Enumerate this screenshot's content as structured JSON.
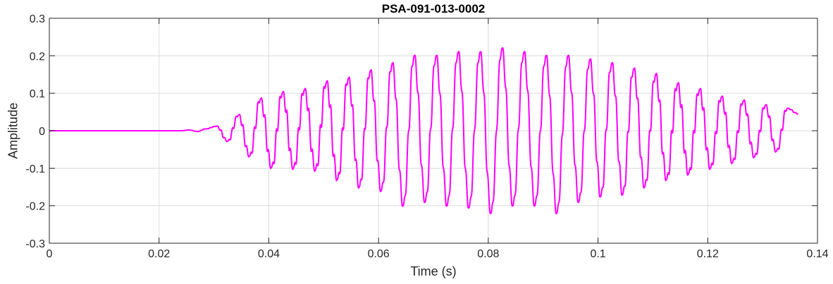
{
  "chart_data": {
    "type": "line",
    "title": "PSA-091-013-0002",
    "xlabel": "Time (s)",
    "ylabel": "Amplitude",
    "xlim": [
      0,
      0.14
    ],
    "ylim": [
      -0.3,
      0.3
    ],
    "xticks": [
      0,
      0.02,
      0.04,
      0.06,
      0.08,
      0.1,
      0.12,
      0.14
    ],
    "xtick_labels": [
      "0",
      "0.02",
      "0.04",
      "0.06",
      "0.08",
      "0.1",
      "0.12",
      "0.14"
    ],
    "yticks": [
      -0.3,
      -0.2,
      -0.1,
      0,
      0.1,
      0.2,
      0.3
    ],
    "ytick_labels": [
      "-0.3",
      "-0.2",
      "-0.1",
      "0",
      "0.1",
      "0.2",
      "0.3"
    ],
    "grid": true,
    "series": [
      {
        "color": "#ff00ff",
        "x": [
          0,
          0.024,
          0.0255,
          0.027,
          0.0285,
          0.0305,
          0.0325,
          0.0345,
          0.0365,
          0.0385,
          0.0405,
          0.0425,
          0.0445,
          0.0465,
          0.0485,
          0.0505,
          0.0525,
          0.0545,
          0.0565,
          0.0585,
          0.0605,
          0.0625,
          0.0645,
          0.0665,
          0.0685,
          0.0705,
          0.0725,
          0.0745,
          0.0765,
          0.0785,
          0.0805,
          0.0825,
          0.0845,
          0.0865,
          0.0885,
          0.0905,
          0.0925,
          0.0945,
          0.0965,
          0.0985,
          0.1005,
          0.1025,
          0.1045,
          0.1065,
          0.1085,
          0.1105,
          0.1125,
          0.1145,
          0.1165,
          0.1185,
          0.1205,
          0.1225,
          0.1245,
          0.1265,
          0.1285,
          0.1305,
          0.1325,
          0.1345,
          0.1365
        ],
        "y": [
          0,
          0,
          0.002,
          -0.002,
          0.005,
          0.012,
          -0.028,
          0.042,
          -0.068,
          0.085,
          -0.098,
          0.102,
          -0.1,
          0.11,
          -0.105,
          0.13,
          -0.13,
          0.14,
          -0.15,
          0.16,
          -0.16,
          0.18,
          -0.2,
          0.2,
          -0.19,
          0.2,
          -0.2,
          0.21,
          -0.205,
          0.21,
          -0.22,
          0.22,
          -0.2,
          0.21,
          -0.2,
          0.2,
          -0.22,
          0.2,
          -0.19,
          0.19,
          -0.175,
          0.18,
          -0.17,
          0.165,
          -0.15,
          0.15,
          -0.13,
          0.125,
          -0.115,
          0.11,
          -0.1,
          0.09,
          -0.085,
          0.08,
          -0.07,
          0.068,
          -0.055,
          0.06,
          0.045
        ]
      }
    ]
  }
}
